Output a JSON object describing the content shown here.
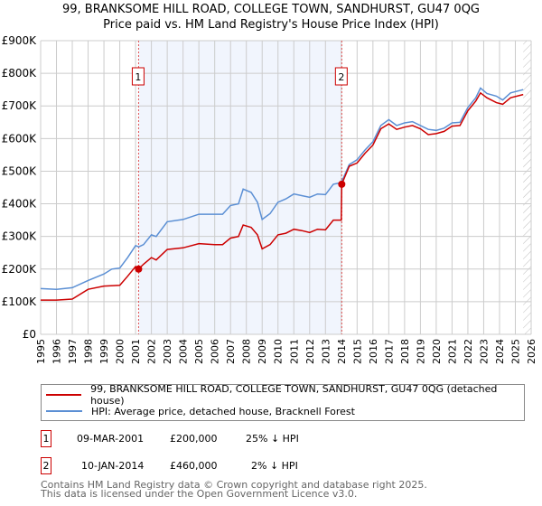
{
  "chart_data": {
    "type": "line",
    "title": "99, BRANKSOME HILL ROAD, COLLEGE TOWN, SANDHURST, GU47 0QG",
    "subtitle": "Price paid vs. HM Land Registry's House Price Index (HPI)",
    "xlim": [
      1995,
      2026
    ],
    "ylim": [
      0,
      900000
    ],
    "x_ticks": [
      "1995",
      "1996",
      "1997",
      "1998",
      "1999",
      "2000",
      "2001",
      "2002",
      "2003",
      "2004",
      "2005",
      "2006",
      "2007",
      "2008",
      "2009",
      "2010",
      "2011",
      "2012",
      "2013",
      "2014",
      "2015",
      "2016",
      "2017",
      "2018",
      "2019",
      "2020",
      "2021",
      "2022",
      "2023",
      "2024",
      "2025",
      "2026"
    ],
    "y_ticks": [
      {
        "v": 0,
        "label": "£0"
      },
      {
        "v": 100000,
        "label": "£100K"
      },
      {
        "v": 200000,
        "label": "£200K"
      },
      {
        "v": 300000,
        "label": "£300K"
      },
      {
        "v": 400000,
        "label": "£400K"
      },
      {
        "v": 500000,
        "label": "£500K"
      },
      {
        "v": 600000,
        "label": "£600K"
      },
      {
        "v": 700000,
        "label": "£700K"
      },
      {
        "v": 800000,
        "label": "£800K"
      },
      {
        "v": 900000,
        "label": "£900K"
      }
    ],
    "grid": true,
    "shaded_range": [
      2001.19,
      2014.03
    ],
    "forecast_hatch_from": 2025.5,
    "series": [
      {
        "name": "99, BRANKSOME HILL ROAD, COLLEGE TOWN, SANDHURST, GU47 0QG (detached house)",
        "color": "#cc0000",
        "x": [
          1995,
          1996,
          1997,
          1998,
          1999,
          2000,
          2000.5,
          2001,
          2001.19,
          2001.5,
          2002,
          2002.3,
          2003,
          2004,
          2005,
          2006,
          2006.5,
          2007,
          2007.5,
          2007.8,
          2008.3,
          2008.7,
          2009,
          2009.5,
          2010,
          2010.5,
          2011,
          2011.5,
          2012,
          2012.5,
          2013,
          2013.5,
          2014,
          2014.03,
          2014.5,
          2015,
          2015.5,
          2016,
          2016.5,
          2017,
          2017.5,
          2018,
          2018.5,
          2019,
          2019.5,
          2020,
          2020.5,
          2021,
          2021.5,
          2022,
          2022.5,
          2022.8,
          2023.2,
          2023.8,
          2024.2,
          2024.7,
          2025.5
        ],
        "y": [
          105,
          105,
          108,
          138,
          148,
          150,
          178,
          208,
          200,
          215,
          235,
          228,
          260,
          265,
          278,
          275,
          275,
          295,
          300,
          335,
          328,
          305,
          262,
          275,
          305,
          310,
          322,
          318,
          312,
          322,
          320,
          350,
          350,
          460,
          515,
          525,
          555,
          580,
          630,
          645,
          628,
          635,
          640,
          630,
          612,
          615,
          622,
          638,
          640,
          685,
          715,
          740,
          725,
          710,
          705,
          725,
          735
        ]
      },
      {
        "name": "HPI: Average price, detached house, Bracknell Forest",
        "color": "#5b8fd4",
        "x": [
          1995,
          1996,
          1997,
          1998,
          1999,
          1999.5,
          2000,
          2000.5,
          2001,
          2001.2,
          2001.5,
          2002,
          2002.3,
          2003,
          2004,
          2005,
          2006,
          2006.5,
          2007,
          2007.5,
          2007.8,
          2008.3,
          2008.7,
          2009,
          2009.5,
          2010,
          2010.5,
          2011,
          2011.5,
          2012,
          2012.5,
          2013,
          2013.5,
          2014,
          2014.5,
          2015,
          2015.5,
          2016,
          2016.5,
          2017,
          2017.5,
          2018,
          2018.5,
          2019,
          2019.5,
          2020,
          2020.5,
          2021,
          2021.5,
          2022,
          2022.5,
          2022.8,
          2023.2,
          2023.8,
          2024.2,
          2024.7,
          2025.5
        ],
        "y": [
          140,
          138,
          143,
          165,
          185,
          200,
          203,
          235,
          272,
          268,
          275,
          305,
          300,
          345,
          352,
          368,
          368,
          368,
          395,
          400,
          445,
          435,
          405,
          352,
          370,
          405,
          415,
          430,
          425,
          420,
          430,
          428,
          460,
          465,
          520,
          535,
          565,
          590,
          640,
          658,
          640,
          648,
          652,
          640,
          628,
          625,
          632,
          648,
          650,
          695,
          725,
          755,
          738,
          730,
          718,
          740,
          750
        ]
      }
    ],
    "y_unit_multiplier": 1000,
    "sales": [
      {
        "label": "1",
        "x": 2001.19,
        "y": 200000
      },
      {
        "label": "2",
        "x": 2014.03,
        "y": 460000
      }
    ]
  },
  "legend": [
    "99, BRANKSOME HILL ROAD, COLLEGE TOWN, SANDHURST, GU47 0QG (detached house)",
    "HPI: Average price, detached house, Bracknell Forest"
  ],
  "transactions": [
    {
      "num": "1",
      "date": "09-MAR-2001",
      "price": "£200,000",
      "hpi": "25% ↓ HPI"
    },
    {
      "num": "2",
      "date": "10-JAN-2014",
      "price": "£460,000",
      "hpi": "2% ↓ HPI"
    }
  ],
  "footer": [
    "Contains HM Land Registry data © Crown copyright and database right 2025.",
    "This data is licensed under the Open Government Licence v3.0."
  ]
}
